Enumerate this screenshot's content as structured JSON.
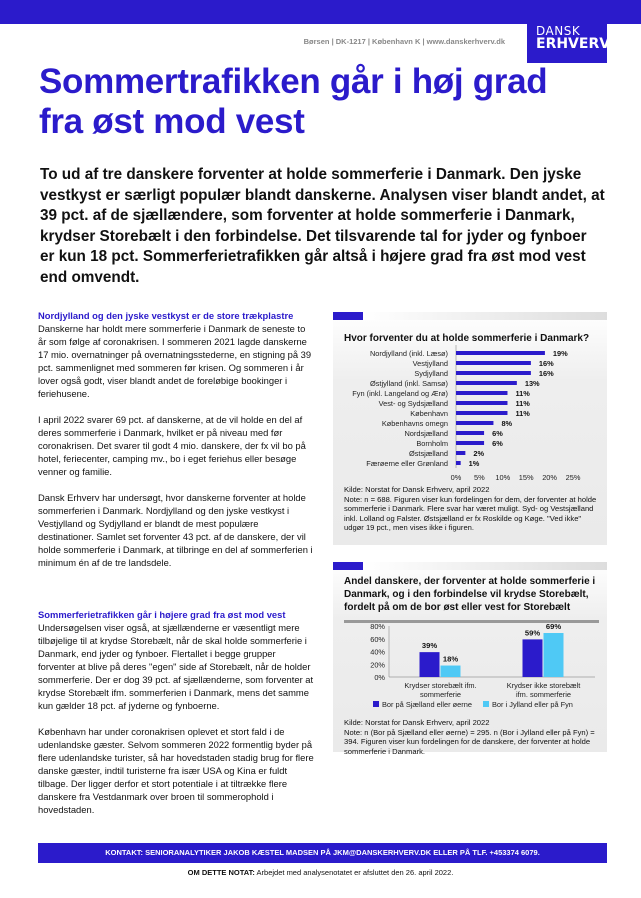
{
  "header": {
    "address": "Børsen | DK-1217 | København K | www.danskerhverv.dk",
    "logo_line1": "DANSK",
    "logo_line2": "ERHVERV",
    "brand_color": "#2b1bcb"
  },
  "title": "Sommertrafikken går i høj grad fra øst mod vest",
  "lead": "To ud af tre danskere forventer at holde sommerferie i Danmark. Den jyske vestkyst er særligt populær blandt danskerne. Analysen viser blandt andet, at 39 pct. af de sjællændere, som forventer at holde sommerferie i Danmark, krydser Storebælt i den forbindelse.  Det tilsvarende tal for jyder og fynboer er kun 18 pct. Sommerferietrafikken går altså i højere grad fra øst mod vest end omvendt.",
  "body": {
    "heading1": "Nordjylland og den jyske vestkyst er de store trækplastre",
    "p1": "Danskerne har holdt mere sommerferie i Danmark de seneste to år som følge af coronakrisen.  I sommeren 2021 lagde danskerne 17 mio. overnatninger på overnatningsstederne, en stigning på 39 pct. sammenlignet med sommeren før krisen. Og sommeren i år lover også godt, viser blandt andet de foreløbige bookinger i feriehusene.",
    "p2": "I april 2022 svarer 69 pct. af danskerne, at de vil holde en del af deres sommerferie i Danmark, hvilket er på niveau med før coronakrisen. Det svarer til godt 4 mio. danskere, der fx vil bo på hotel, feriecenter, camping mv., bo i eget feriehus eller besøge venner og familie.",
    "p3": "Dansk Erhverv har undersøgt, hvor danskerne forventer at holde sommerferien i Danmark. Nordjylland og den jyske vestkyst i Vestjylland og Sydjylland er blandt de mest populære destinationer. Samlet set forventer 43 pct. af de danskere, der vil holde sommerferie i Danmark, at tilbringe en del af sommerferien i minimum én af de tre landsdele.",
    "heading2": "Sommerferietrafikken går i højere grad fra øst mod vest",
    "p4": "Undersøgelsen viser også, at sjællænderne er væsentligt mere tilbøjelige til at krydse Storebælt, når de skal holde sommerferie i Danmark, end jyder og fynboer. Flertallet i begge grupper forventer at blive på deres \"egen\" side af Storebælt, når de holder sommerferie. Der er dog 39 pct. af sjællænderne, som forventer at krydse Storebælt ifm. sommerferien i Danmark, mens det samme kun gælder 18 pct. af jyderne og fynboerne.",
    "p5": "København har under coronakrisen oplevet et stort fald i de udenlandske gæster. Selvom sommeren 2022 formentlig byder på flere udenlandske turister, så har hovedstaden stadig brug for flere danske gæster, indtil turisterne fra især USA og Kina er fuldt tilbage. Der ligger derfor et stort potentiale i at tiltrække flere danskere fra Vestdanmark over broen til sommerophold i hovedstaden."
  },
  "chart_data": [
    {
      "type": "bar",
      "orientation": "horizontal",
      "title": "Hvor forventer du at holde sommerferie i Danmark?",
      "categories": [
        "Nordjylland (inkl. Læsø)",
        "Vestjylland",
        "Sydjylland",
        "Østjylland (inkl. Samsø)",
        "Fyn (inkl. Langeland og Ærø)",
        "Vest- og Sydsjælland",
        "København",
        "Københavns omegn",
        "Nordsjælland",
        "Bornholm",
        "Østsjælland",
        "Færøerne eller Grønland"
      ],
      "values": [
        19,
        16,
        16,
        13,
        11,
        11,
        11,
        8,
        6,
        6,
        2,
        1
      ],
      "data_labels": [
        "19%",
        "16%",
        "16%",
        "13%",
        "11%",
        "11%",
        "11%",
        "8%",
        "6%",
        "6%",
        "2%",
        "1%"
      ],
      "xlim": [
        0,
        25
      ],
      "xticks": [
        "0%",
        "5%",
        "10%",
        "15%",
        "20%",
        "25%"
      ],
      "color": "#2b1bcb",
      "source": "Kilde: Norstat for Dansk Erhverv, april 2022",
      "note": "Note: n = 688. Figuren viser kun fordelingen for dem, der forventer at holde sommerferie i Danmark. Flere svar har været muligt. Syd- og Vestsjælland inkl. Lolland og Falster. Østsjælland er fx Roskilde og Køge. \"Ved ikke\" udgør 19 pct., men vises ikke i figuren."
    },
    {
      "type": "bar",
      "title": "Andel danskere, der forventer at holde sommerferie i Danmark, og i den forbindelse vil krydse Storebælt, fordelt på om de bor øst eller vest for Storebælt",
      "categories": [
        "Krydser storebælt ifm. sommerferie",
        "Krydser ikke storebælt ifm. sommerferie"
      ],
      "series": [
        {
          "name": "Bor på Sjælland eller øerne",
          "values": [
            39,
            59
          ],
          "labels": [
            "39%",
            "59%"
          ],
          "color": "#2b1bcb"
        },
        {
          "name": "Bor i Jylland eller på Fyn",
          "values": [
            18,
            69
          ],
          "labels": [
            "18%",
            "69%"
          ],
          "color": "#4fc9f5"
        }
      ],
      "ylim": [
        0,
        80
      ],
      "yticks": [
        "0%",
        "20%",
        "40%",
        "60%",
        "80%"
      ],
      "source": "Kilde: Norstat for Dansk Erhverv, april 2022",
      "note": "Note: n (Bor på Sjælland eller øerne) = 295. n (Bor i Jylland eller på Fyn) = 394. Figuren viser kun fordelingen for de danskere, der forventer at holde sommerferie i Danmark."
    }
  ],
  "footer": {
    "contact": "KONTAKT: SENIORANALYTIKER JAKOB KÆSTEL MADSEN PÅ JKM@DANSKERHVERV.DK ELLER PÅ TLF. +453374 6079.",
    "about_label": "OM DETTE NOTAT:",
    "about_text": " Arbejdet med analysenotatet er afsluttet den 26. april 2022."
  }
}
